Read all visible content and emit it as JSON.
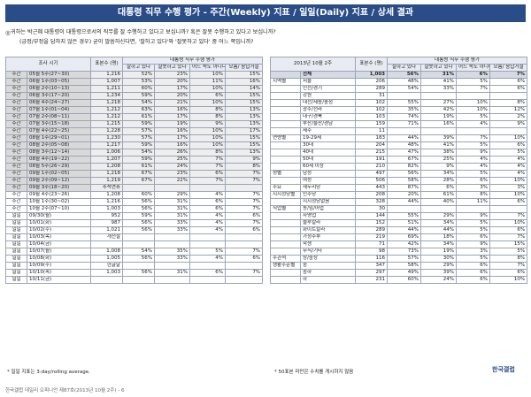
{
  "title": "대통령 직무 수행 평가 - 주간(Weekly) 지표 / 일일(Daily) 지표 / 상세 결과",
  "bullet": "◎",
  "question1": "귀하는 박근혜 대통령이 대통령으로서의 직무를 잘 수행하고 있다고 보십니까? 혹은 잘못 수행하고 있다고 보십니까?",
  "question2": "(긍정/부정을 답하지 않은 경우) 굳이 말씀하신다면, '잘하고 있다'와 '잘못하고 있다' 중 어느 쪽입니까?",
  "left_table": {
    "group_header": "대통령 직무 수행 평가",
    "headers": [
      "조사 시기",
      "표본수 (명)",
      "잘하고 있다",
      "잘못하고 있다",
      "어느 쪽도 아니다",
      "모름/ 응답거절"
    ],
    "rows": [
      {
        "c": [
          "주간",
          "05월 5주(27~30)",
          "1,216",
          "52%",
          "23%",
          "10%",
          "15%"
        ],
        "gray": true
      },
      {
        "c": [
          "주간",
          "06월 1주(03~05)",
          "1,007",
          "53%",
          "20%",
          "11%",
          "16%"
        ],
        "gray": true
      },
      {
        "c": [
          "주간",
          "06월 2주(10~13)",
          "1,211",
          "60%",
          "17%",
          "10%",
          "14%"
        ],
        "gray": true
      },
      {
        "c": [
          "주간",
          "06월 3주(17~20)",
          "1,234",
          "59%",
          "20%",
          "6%",
          "15%"
        ],
        "gray": true
      },
      {
        "c": [
          "주간",
          "06월 4주(24~27)",
          "1,218",
          "54%",
          "21%",
          "10%",
          "15%"
        ],
        "gray": true
      },
      {
        "c": [
          "주간",
          "07월 1주(01~04)",
          "1,212",
          "63%",
          "16%",
          "8%",
          "13%"
        ],
        "gray": true
      },
      {
        "c": [
          "주간",
          "07월 2주(08~11)",
          "1,212",
          "61%",
          "17%",
          "8%",
          "13%"
        ],
        "gray": true
      },
      {
        "c": [
          "주간",
          "07월 3주(15~18)",
          "1,215",
          "59%",
          "19%",
          "9%",
          "13%"
        ],
        "gray": true
      },
      {
        "c": [
          "주간",
          "07월 4주(22~25)",
          "1,228",
          "57%",
          "16%",
          "10%",
          "17%"
        ],
        "gray": true
      },
      {
        "c": [
          "주간",
          "08월 1주(29~01)",
          "1,230",
          "57%",
          "17%",
          "10%",
          "15%"
        ],
        "gray": true
      },
      {
        "c": [
          "주간",
          "08월 2주(05~08)",
          "1,217",
          "59%",
          "16%",
          "10%",
          "15%"
        ],
        "gray": true
      },
      {
        "c": [
          "주간",
          "08월 3주(12~14)",
          "1,006",
          "54%",
          "26%",
          "8%",
          "13%"
        ],
        "gray": true
      },
      {
        "c": [
          "주간",
          "08월 4주(19~22)",
          "1,207",
          "59%",
          "25%",
          "7%",
          "9%"
        ],
        "gray": true
      },
      {
        "c": [
          "주간",
          "08월 5주(26~29)",
          "1,208",
          "61%",
          "24%",
          "7%",
          "8%"
        ],
        "gray": true
      },
      {
        "c": [
          "주간",
          "09월 1주(02~05)",
          "1,218",
          "67%",
          "23%",
          "6%",
          "7%"
        ],
        "gray": true
      },
      {
        "c": [
          "주간",
          "09월 2주(09~12)",
          "1,219",
          "67%",
          "22%",
          "7%",
          "7%"
        ],
        "gray": true
      },
      {
        "c": [
          "주간",
          "09월 3주(18~20)",
          "추석연휴",
          "",
          "",
          "",
          ""
        ],
        "gray": true
      },
      {
        "c": [
          "주간",
          "09월 4주(23~26)",
          "1,208",
          "60%",
          "29%",
          "4%",
          "7%"
        ],
        "gray": false
      },
      {
        "c": [
          "주간",
          "10월 1주(30~02)",
          "1,216",
          "56%",
          "31%",
          "6%",
          "7%"
        ],
        "gray": false
      },
      {
        "c": [
          "주간",
          "10월 2주(07~10)",
          "1,003",
          "56%",
          "31%",
          "6%",
          "7%"
        ],
        "gray": false
      },
      {
        "c": [
          "일일",
          "09/30(월)",
          "952",
          "59%",
          "31%",
          "4%",
          "6%"
        ],
        "gray": false
      },
      {
        "c": [
          "일일",
          "10/01(화)",
          "987",
          "56%",
          "33%",
          "4%",
          "7%"
        ],
        "gray": false
      },
      {
        "c": [
          "일일",
          "10/02(수)",
          "1,021",
          "56%",
          "33%",
          "4%",
          "6%"
        ],
        "gray": false
      },
      {
        "c": [
          "일일",
          "10/03(목)",
          "개천절",
          "",
          "",
          "",
          ""
        ],
        "gray": false
      },
      {
        "c": [
          "일일",
          "10/04(금)",
          "",
          "",
          "",
          "",
          ""
        ],
        "gray": false
      },
      {
        "c": [
          "일일",
          "10/07(월)",
          "1,008",
          "54%",
          "35%",
          "5%",
          "7%"
        ],
        "gray": false
      },
      {
        "c": [
          "일일",
          "10/08(화)",
          "1,005",
          "56%",
          "33%",
          "4%",
          "6%"
        ],
        "gray": false
      },
      {
        "c": [
          "일일",
          "10/09(수)",
          "한글날",
          "",
          "",
          "",
          ""
        ],
        "gray": false
      },
      {
        "c": [
          "일일",
          "10/10(목)",
          "1,003",
          "56%",
          "31%",
          "6%",
          "7%"
        ],
        "gray": false
      },
      {
        "c": [
          "일일",
          "10/11(금)",
          "",
          "",
          "",
          "",
          ""
        ],
        "gray": false
      }
    ]
  },
  "right_table": {
    "group_header": "대통령 직무 수행 평가",
    "headers": [
      "2013년 10월 2주",
      "표본수 (명)",
      "잘하고 있다",
      "잘못하고 있다",
      "어느 쪽도 아니다",
      "모름/ 응답거절"
    ],
    "rows": [
      {
        "c": [
          "",
          "전체",
          "1,003",
          "56%",
          "31%",
          "6%",
          "7%"
        ],
        "hl": true
      },
      {
        "c": [
          "지역별",
          "서울",
          "206",
          "48%",
          "41%",
          "5%",
          "6%"
        ]
      },
      {
        "c": [
          "",
          "인천/경기",
          "289",
          "54%",
          "33%",
          "7%",
          "6%"
        ]
      },
      {
        "c": [
          "",
          "강원",
          "31",
          "",
          "",
          "",
          ""
        ]
      },
      {
        "c": [
          "",
          "대전/세종/충청",
          "102",
          "55%",
          "27%",
          "10%",
          "8%"
        ]
      },
      {
        "c": [
          "",
          "광주/전라",
          "102",
          "35%",
          "42%",
          "10%",
          "12%"
        ]
      },
      {
        "c": [
          "",
          "대구/경북",
          "103",
          "74%",
          "19%",
          "5%",
          "2%"
        ]
      },
      {
        "c": [
          "",
          "부산/울산/경남",
          "159",
          "71%",
          "16%",
          "4%",
          "9%"
        ]
      },
      {
        "c": [
          "",
          "제주",
          "11",
          "",
          "",
          "",
          ""
        ]
      },
      {
        "c": [
          "연령별",
          "19-29세",
          "183",
          "44%",
          "39%",
          "7%",
          "10%"
        ]
      },
      {
        "c": [
          "",
          "30대",
          "204",
          "48%",
          "41%",
          "5%",
          "6%"
        ]
      },
      {
        "c": [
          "",
          "40대",
          "215",
          "47%",
          "38%",
          "9%",
          "5%"
        ]
      },
      {
        "c": [
          "",
          "50대",
          "191",
          "67%",
          "25%",
          "4%",
          "4%"
        ]
      },
      {
        "c": [
          "",
          "60세 이상",
          "210",
          "82%",
          "9%",
          "4%",
          "4%"
        ]
      },
      {
        "c": [
          "성별",
          "남성",
          "497",
          "56%",
          "34%",
          "5%",
          "4%"
        ]
      },
      {
        "c": [
          "",
          "여성",
          "506",
          "58%",
          "28%",
          "6%",
          "10%"
        ]
      },
      {
        "c": [
          "주요",
          "새누리당",
          "443",
          "87%",
          "6%",
          "3%",
          "3%"
        ]
      },
      {
        "c": [
          "지지정당별",
          "민주당",
          "208",
          "20%",
          "61%",
          "8%",
          "10%"
        ]
      },
      {
        "c": [
          "",
          "지지정당없음",
          "328",
          "44%",
          "40%",
          "11%",
          "6%"
        ]
      },
      {
        "c": [
          "직업별",
          "농/임/어업",
          "30",
          "",
          "",
          "",
          ""
        ]
      },
      {
        "c": [
          "",
          "자영업",
          "144",
          "55%",
          "29%",
          "9%",
          "7%"
        ]
      },
      {
        "c": [
          "",
          "블루칼라",
          "152",
          "51%",
          "34%",
          "5%",
          "10%"
        ]
      },
      {
        "c": [
          "",
          "화이트칼라",
          "289",
          "44%",
          "44%",
          "5%",
          "6%"
        ]
      },
      {
        "c": [
          "",
          "가정주부",
          "219",
          "69%",
          "18%",
          "6%",
          "7%"
        ]
      },
      {
        "c": [
          "",
          "학생",
          "71",
          "42%",
          "34%",
          "9%",
          "15%"
        ]
      },
      {
        "c": [
          "",
          "무직/기타",
          "98",
          "73%",
          "19%",
          "3%",
          "5%"
        ]
      },
      {
        "c": [
          "주관적",
          "상/중상",
          "116",
          "57%",
          "30%",
          "5%",
          "8%"
        ]
      },
      {
        "c": [
          "생활수준별",
          "중",
          "347",
          "58%",
          "29%",
          "6%",
          "7%"
        ]
      },
      {
        "c": [
          "",
          "중하",
          "297",
          "49%",
          "39%",
          "6%",
          "6%"
        ]
      },
      {
        "c": [
          "",
          "하",
          "231",
          "60%",
          "24%",
          "6%",
          "10%"
        ]
      }
    ]
  },
  "left_note": "* 일일 지표는 3-day/rolling average.",
  "right_note": "* 50표본 미만은 수치를 게시하지 않음",
  "footer": "한국갤럽 데일리 오피니언 제87호(2013년 10월 2주) - 6",
  "logo": "한국갤럽"
}
